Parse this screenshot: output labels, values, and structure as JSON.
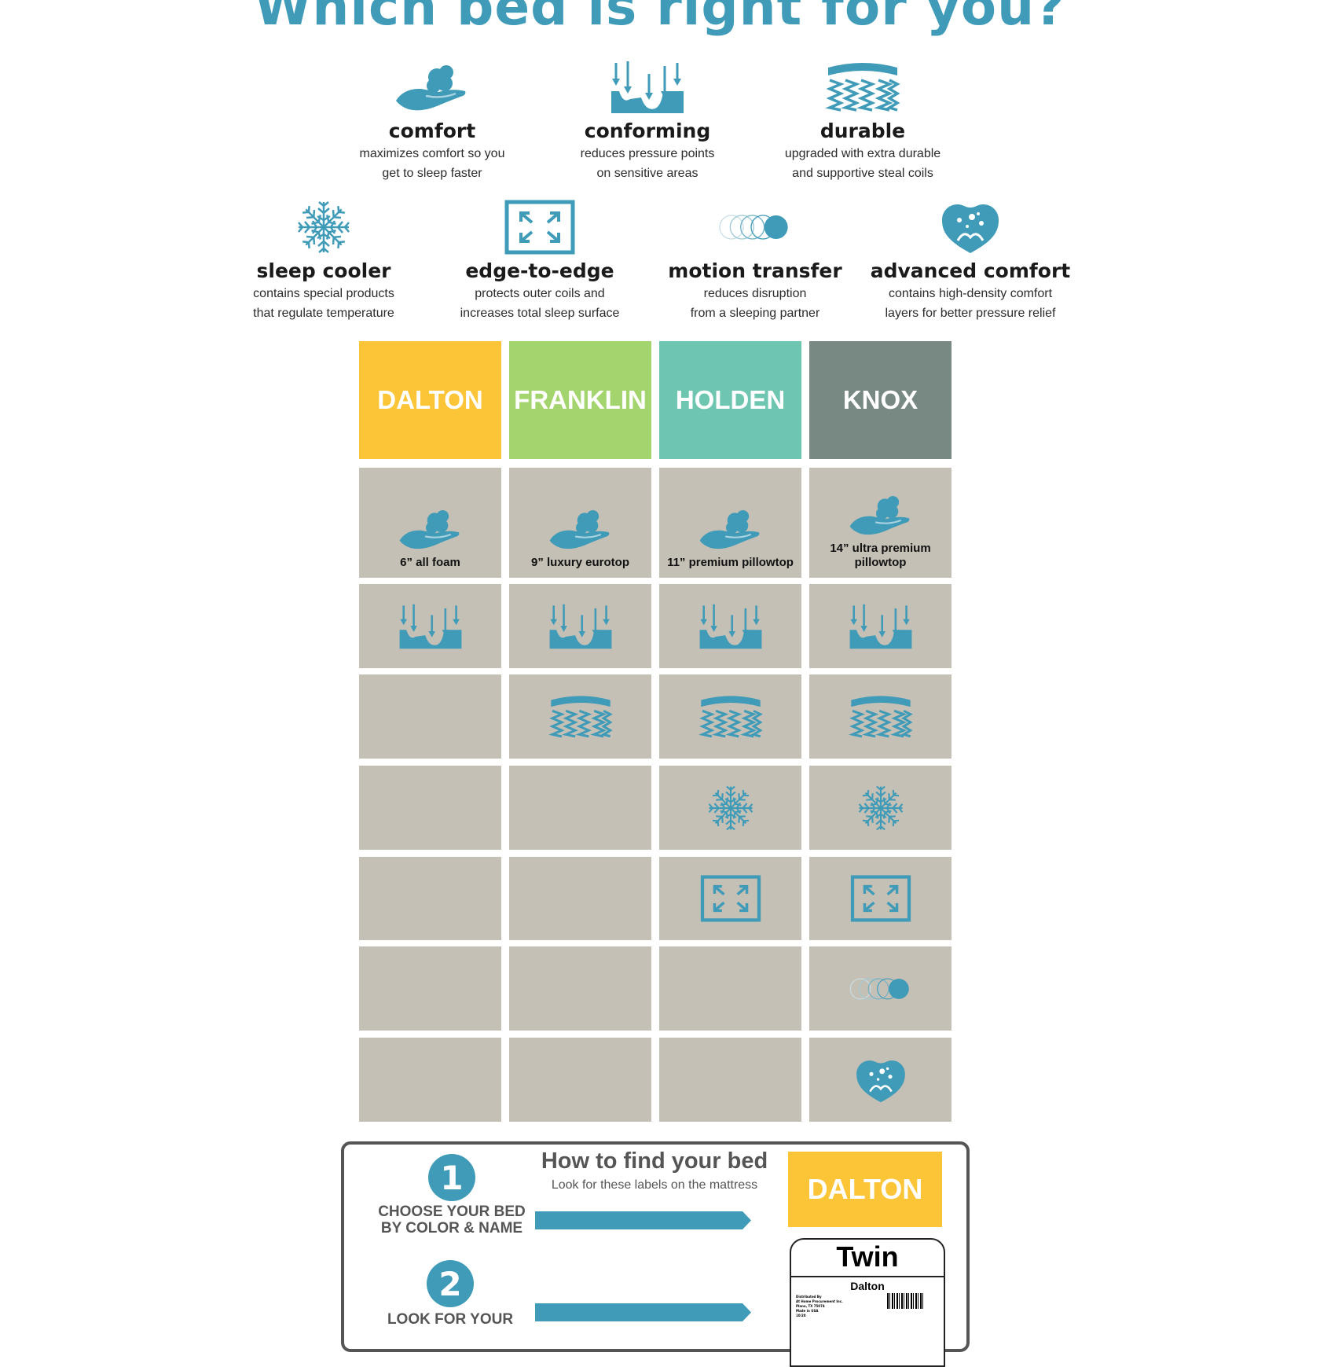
{
  "title": "Which bed is right for you?",
  "colors": {
    "accent": "#3f9bb8",
    "cell": "#c5c0b5"
  },
  "features": [
    {
      "icon": "comfort-hand-icon",
      "label": "comfort",
      "desc": [
        "maximizes comfort so you",
        "get to sleep faster"
      ]
    },
    {
      "icon": "conforming-icon",
      "label": "conforming",
      "desc": [
        "reduces pressure points",
        "on sensitive areas"
      ]
    },
    {
      "icon": "coils-icon",
      "label": "durable",
      "desc": [
        "upgraded with extra durable",
        "and supportive steal coils"
      ]
    },
    {
      "icon": "snowflake-icon",
      "label": "sleep cooler",
      "desc": [
        "contains special products",
        "that regulate temperature"
      ]
    },
    {
      "icon": "expand-icon",
      "label": "edge-to-edge",
      "desc": [
        "protects outer coils and",
        "increases total sleep surface"
      ]
    },
    {
      "icon": "motion-circles-icon",
      "label": "motion transfer",
      "desc": [
        "reduces disruption",
        "from a sleeping partner"
      ]
    },
    {
      "icon": "heart-icon",
      "label": "advanced comfort",
      "desc": [
        "contains high-density comfort",
        "layers for better pressure relief"
      ]
    }
  ],
  "beds": [
    {
      "name": "DALTON",
      "color": "#fbc537",
      "comfort_label": "6” all foam",
      "has": [
        true,
        true,
        false,
        false,
        false,
        false,
        false
      ]
    },
    {
      "name": "FRANKLIN",
      "color": "#a3d46d",
      "comfort_label": "9” luxury eurotop",
      "has": [
        true,
        true,
        true,
        false,
        false,
        false,
        false
      ]
    },
    {
      "name": "HOLDEN",
      "color": "#6fc6b0",
      "comfort_label": "11” premium pillowtop",
      "has": [
        true,
        true,
        true,
        true,
        true,
        false,
        false
      ]
    },
    {
      "name": "KNOX",
      "color": "#788882",
      "comfort_label": "14” ultra premium pillowtop",
      "has": [
        true,
        true,
        true,
        true,
        true,
        true,
        true
      ]
    }
  ],
  "howto": {
    "title": "How to find your bed",
    "subtitle": "Look for these labels on the mattress",
    "steps": [
      {
        "num": "1",
        "text": "CHOOSE YOUR BED BY COLOR & NAME"
      },
      {
        "num": "2",
        "text": "LOOK FOR YOUR"
      }
    ],
    "label_name": "DALTON",
    "label_color": "#fbc537",
    "tag_size": "Twin",
    "tag_model": "Dalton",
    "tag_fine": [
      "Distributed By",
      "At Home Procurement Inc.",
      "Plano, TX 75074",
      "Made in USA",
      "10/20"
    ]
  }
}
